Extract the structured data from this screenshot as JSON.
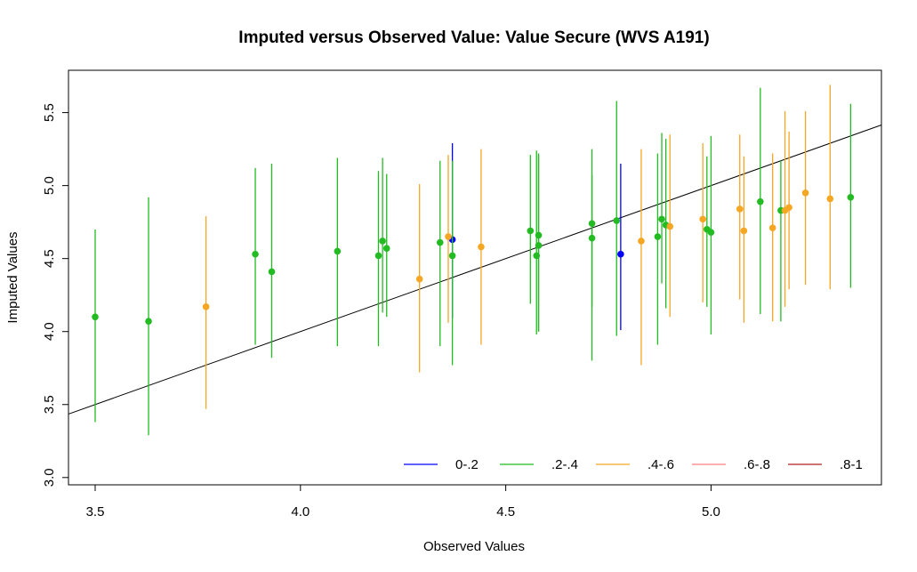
{
  "chart_data": {
    "type": "scatter",
    "title": "Imputed versus Observed Value: Value Secure (WVS A191)",
    "xlabel": "Observed Values",
    "ylabel": "Imputed Values",
    "xlim": [
      3.435,
      5.415
    ],
    "ylim": [
      2.95,
      5.79
    ],
    "x_ticks": [
      "3.5",
      "4.0",
      "4.5",
      "5.0"
    ],
    "y_ticks": [
      "3.0",
      "3.5",
      "4.0",
      "4.5",
      "5.0",
      "5.5"
    ],
    "grid": false,
    "reference_line": {
      "slope": 1,
      "intercept": 0
    },
    "legend": {
      "placement": "bottom-right",
      "entries": [
        {
          "label": "0-.2",
          "color": "#0000ff"
        },
        {
          "label": ".2-.4",
          "color": "#22bb22"
        },
        {
          "label": ".4-.6",
          "color": "#f5a623"
        },
        {
          "label": ".6-.8",
          "color": "#ff7f7f"
        },
        {
          "label": ".8-1",
          "color": "#b22222"
        }
      ]
    },
    "series": [
      {
        "name": "0-.2",
        "color": "#0000ff",
        "points": [
          {
            "x": 4.37,
            "y": 4.63,
            "lo": 4.09,
            "hi": 5.29
          },
          {
            "x": 4.78,
            "y": 4.53,
            "lo": 4.01,
            "hi": 5.15
          }
        ]
      },
      {
        "name": ".2-.4",
        "color": "#22bb22",
        "points": [
          {
            "x": 3.5,
            "y": 4.1,
            "lo": 3.38,
            "hi": 4.7
          },
          {
            "x": 3.63,
            "y": 4.07,
            "lo": 3.29,
            "hi": 4.92
          },
          {
            "x": 3.89,
            "y": 4.53,
            "lo": 3.91,
            "hi": 5.12
          },
          {
            "x": 3.93,
            "y": 4.41,
            "lo": 3.82,
            "hi": 5.15
          },
          {
            "x": 4.09,
            "y": 4.55,
            "lo": 3.9,
            "hi": 5.19
          },
          {
            "x": 4.19,
            "y": 4.52,
            "lo": 3.9,
            "hi": 5.1
          },
          {
            "x": 4.2,
            "y": 4.62,
            "lo": 4.13,
            "hi": 5.19
          },
          {
            "x": 4.21,
            "y": 4.57,
            "lo": 4.1,
            "hi": 5.08
          },
          {
            "x": 4.34,
            "y": 4.61,
            "lo": 3.9,
            "hi": 5.17
          },
          {
            "x": 4.37,
            "y": 4.52,
            "lo": 3.77,
            "hi": 5.17
          },
          {
            "x": 4.56,
            "y": 4.69,
            "lo": 4.19,
            "hi": 5.21
          },
          {
            "x": 4.575,
            "y": 4.52,
            "lo": 3.98,
            "hi": 5.24
          },
          {
            "x": 4.58,
            "y": 4.66,
            "lo": 4.0,
            "hi": 5.22
          },
          {
            "x": 4.58,
            "y": 4.59,
            "lo": 4.0,
            "hi": 5.21
          },
          {
            "x": 4.71,
            "y": 4.74,
            "lo": 4.17,
            "hi": 5.25
          },
          {
            "x": 4.71,
            "y": 4.64,
            "lo": 3.8,
            "hi": 5.07
          },
          {
            "x": 4.77,
            "y": 4.76,
            "lo": 3.97,
            "hi": 5.58
          },
          {
            "x": 4.87,
            "y": 4.65,
            "lo": 3.91,
            "hi": 5.22
          },
          {
            "x": 4.88,
            "y": 4.77,
            "lo": 4.33,
            "hi": 5.36
          },
          {
            "x": 4.89,
            "y": 4.73,
            "lo": 4.16,
            "hi": 5.32
          },
          {
            "x": 4.99,
            "y": 4.7,
            "lo": 4.17,
            "hi": 5.2
          },
          {
            "x": 5.0,
            "y": 4.68,
            "lo": 3.98,
            "hi": 5.34
          },
          {
            "x": 5.12,
            "y": 4.89,
            "lo": 4.12,
            "hi": 5.67
          },
          {
            "x": 5.17,
            "y": 4.83,
            "lo": 4.07,
            "hi": 5.17
          },
          {
            "x": 5.34,
            "y": 4.92,
            "lo": 4.3,
            "hi": 5.56
          }
        ]
      },
      {
        "name": ".4-.6",
        "color": "#f5a623",
        "points": [
          {
            "x": 3.77,
            "y": 4.17,
            "lo": 3.47,
            "hi": 4.79
          },
          {
            "x": 4.29,
            "y": 4.36,
            "lo": 3.72,
            "hi": 5.01
          },
          {
            "x": 4.36,
            "y": 4.65,
            "lo": 4.06,
            "hi": 5.21
          },
          {
            "x": 4.44,
            "y": 4.58,
            "lo": 3.91,
            "hi": 5.25
          },
          {
            "x": 4.83,
            "y": 4.62,
            "lo": 3.77,
            "hi": 5.25
          },
          {
            "x": 4.9,
            "y": 4.72,
            "lo": 4.1,
            "hi": 5.35
          },
          {
            "x": 4.98,
            "y": 4.77,
            "lo": 4.2,
            "hi": 5.29
          },
          {
            "x": 5.07,
            "y": 4.84,
            "lo": 4.22,
            "hi": 5.35
          },
          {
            "x": 5.08,
            "y": 4.69,
            "lo": 4.06,
            "hi": 5.2
          },
          {
            "x": 5.15,
            "y": 4.71,
            "lo": 4.07,
            "hi": 5.22
          },
          {
            "x": 5.18,
            "y": 4.83,
            "lo": 4.17,
            "hi": 5.51
          },
          {
            "x": 5.19,
            "y": 4.85,
            "lo": 4.29,
            "hi": 5.37
          },
          {
            "x": 5.23,
            "y": 4.95,
            "lo": 4.32,
            "hi": 5.51
          },
          {
            "x": 5.29,
            "y": 4.91,
            "lo": 4.29,
            "hi": 5.69
          }
        ]
      }
    ]
  }
}
